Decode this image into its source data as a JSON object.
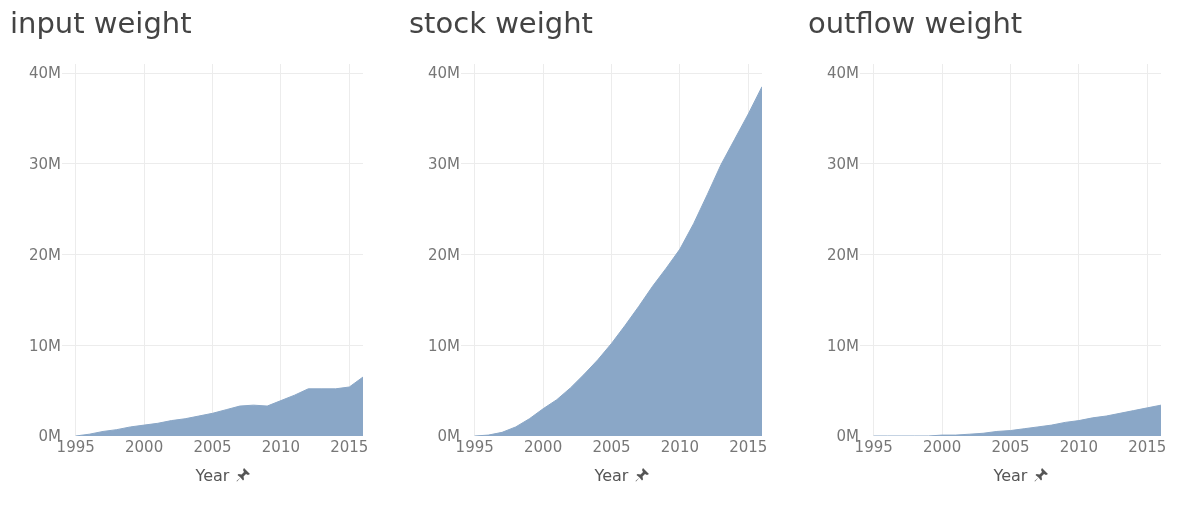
{
  "chart_data": [
    {
      "type": "area",
      "title": "input weight",
      "xlabel": "Year",
      "x": [
        1995,
        1996,
        1997,
        1998,
        1999,
        2000,
        2001,
        2002,
        2003,
        2004,
        2005,
        2006,
        2007,
        2008,
        2009,
        2010,
        2011,
        2012,
        2013,
        2014,
        2015,
        2016
      ],
      "series": [
        {
          "color": "#8aa7c7",
          "values": [
            0,
            200000,
            500000,
            700000,
            1000000,
            1200000,
            1400000,
            1700000,
            1900000,
            2200000,
            2500000,
            2900000,
            3300000,
            3400000,
            3300000,
            3900000,
            4500000,
            5200000,
            5200000,
            5200000,
            5400000,
            6500000
          ]
        }
      ],
      "xlim": [
        1994,
        2016
      ],
      "xticks": [
        1995,
        2000,
        2005,
        2010,
        2015
      ],
      "ylim": [
        0,
        41000000
      ],
      "yticks": [
        {
          "value": 0,
          "label": "0M"
        },
        {
          "value": 10000000,
          "label": "10M"
        },
        {
          "value": 20000000,
          "label": "20M"
        },
        {
          "value": 30000000,
          "label": "30M"
        },
        {
          "value": 40000000,
          "label": "40M"
        }
      ],
      "grid": true
    },
    {
      "type": "area",
      "title": "stock weight",
      "xlabel": "Year",
      "x": [
        1995,
        1996,
        1997,
        1998,
        1999,
        2000,
        2001,
        2002,
        2003,
        2004,
        2005,
        2006,
        2007,
        2008,
        2009,
        2010,
        2011,
        2012,
        2013,
        2014,
        2015,
        2016
      ],
      "series": [
        {
          "color": "#8aa7c7",
          "values": [
            0,
            100000,
            400000,
            1000000,
            1900000,
            3000000,
            4000000,
            5300000,
            6800000,
            8400000,
            10200000,
            12200000,
            14300000,
            16500000,
            18500000,
            20600000,
            23400000,
            26600000,
            29900000,
            32700000,
            35500000,
            38500000
          ]
        }
      ],
      "xlim": [
        1994,
        2016
      ],
      "xticks": [
        1995,
        2000,
        2005,
        2010,
        2015
      ],
      "ylim": [
        0,
        41000000
      ],
      "yticks": [
        {
          "value": 0,
          "label": "0M"
        },
        {
          "value": 10000000,
          "label": "10M"
        },
        {
          "value": 20000000,
          "label": "20M"
        },
        {
          "value": 30000000,
          "label": "30M"
        },
        {
          "value": 40000000,
          "label": "40M"
        }
      ],
      "grid": true
    },
    {
      "type": "area",
      "title": "outflow weight",
      "xlabel": "Year",
      "x": [
        1995,
        1996,
        1997,
        1998,
        1999,
        2000,
        2001,
        2002,
        2003,
        2004,
        2005,
        2006,
        2007,
        2008,
        2009,
        2010,
        2011,
        2012,
        2013,
        2014,
        2015,
        2016
      ],
      "series": [
        {
          "color": "#8aa7c7",
          "values": [
            0,
            0,
            0,
            0,
            0,
            100000,
            100000,
            200000,
            300000,
            500000,
            600000,
            800000,
            1000000,
            1200000,
            1500000,
            1700000,
            2000000,
            2200000,
            2500000,
            2800000,
            3100000,
            3400000
          ]
        }
      ],
      "xlim": [
        1994,
        2016
      ],
      "xticks": [
        1995,
        2000,
        2005,
        2010,
        2015
      ],
      "ylim": [
        0,
        41000000
      ],
      "yticks": [
        {
          "value": 0,
          "label": "0M"
        },
        {
          "value": 10000000,
          "label": "10M"
        },
        {
          "value": 20000000,
          "label": "20M"
        },
        {
          "value": 30000000,
          "label": "30M"
        },
        {
          "value": 40000000,
          "label": "40M"
        }
      ],
      "grid": true
    }
  ]
}
